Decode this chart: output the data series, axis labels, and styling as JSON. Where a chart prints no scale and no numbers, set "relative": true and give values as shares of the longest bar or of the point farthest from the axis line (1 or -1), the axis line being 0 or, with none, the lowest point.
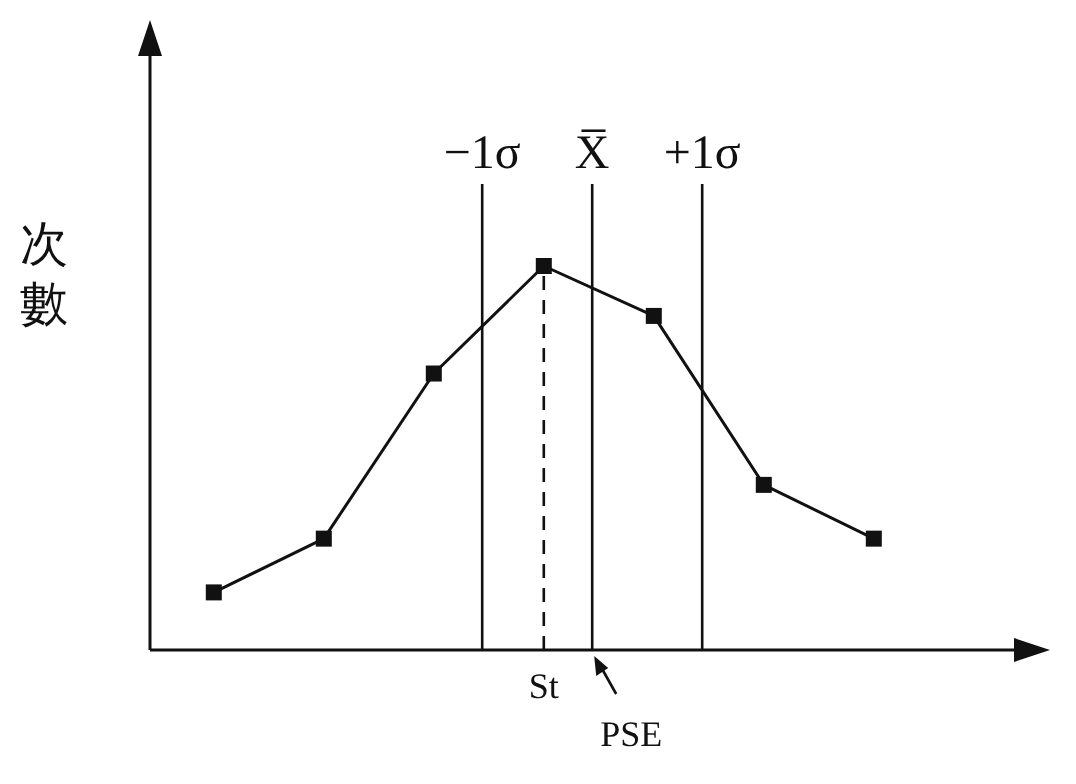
{
  "chart_data": {
    "type": "line",
    "relative": true,
    "ylabel": "次數",
    "categories": [
      null,
      null,
      null,
      null,
      null,
      null,
      null
    ],
    "series": [
      {
        "color": "#111111",
        "values": [
          0.15,
          0.29,
          0.72,
          1,
          0.87,
          0.43,
          0.29
        ]
      }
    ],
    "marker": "square",
    "line_style": "solid",
    "annotations": [
      "−1σ",
      "X̅",
      "+1σ",
      "St",
      "PSE"
    ]
  }
}
